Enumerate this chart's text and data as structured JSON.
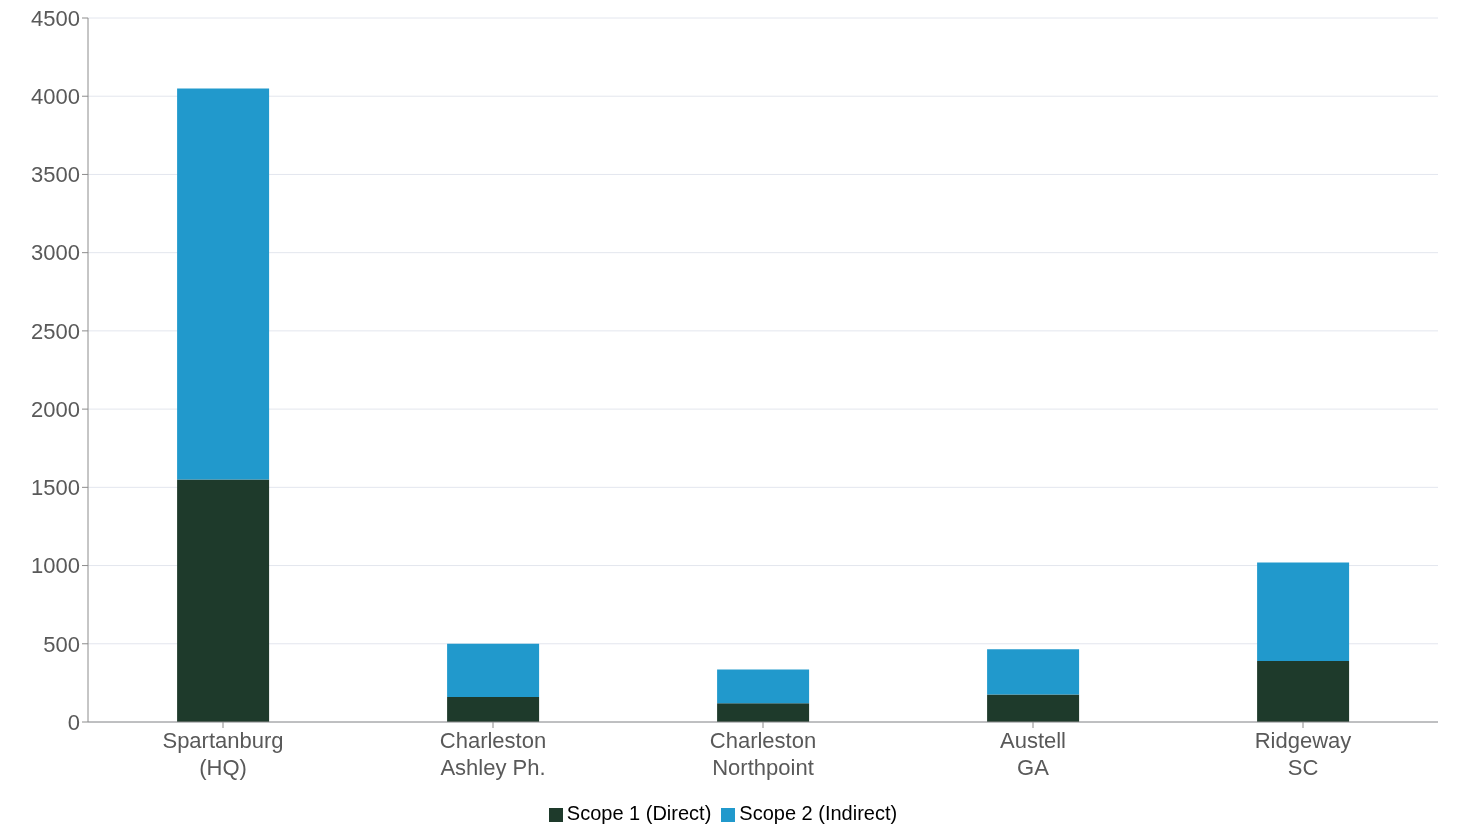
{
  "chart_data": {
    "type": "bar",
    "stacked": true,
    "categories": [
      "Spartanburg\n(HQ)",
      "Charleston\nAshley Ph.",
      "Charleston\nNorthpoint",
      "Austell\nGA",
      "Ridgeway\nSC"
    ],
    "series": [
      {
        "name": "Scope 1 (Direct)",
        "color": "#1e3a2b",
        "values": [
          1550,
          160,
          120,
          175,
          390
        ]
      },
      {
        "name": "Scope 2 (Indirect)",
        "color": "#2199cc",
        "values": [
          2500,
          340,
          215,
          290,
          630
        ]
      }
    ],
    "ylim": [
      0,
      4500
    ],
    "yticks": [
      0,
      500,
      1000,
      1500,
      2000,
      2500,
      3000,
      3500,
      4000,
      4500
    ],
    "grid": "y",
    "legend": "bottom"
  }
}
